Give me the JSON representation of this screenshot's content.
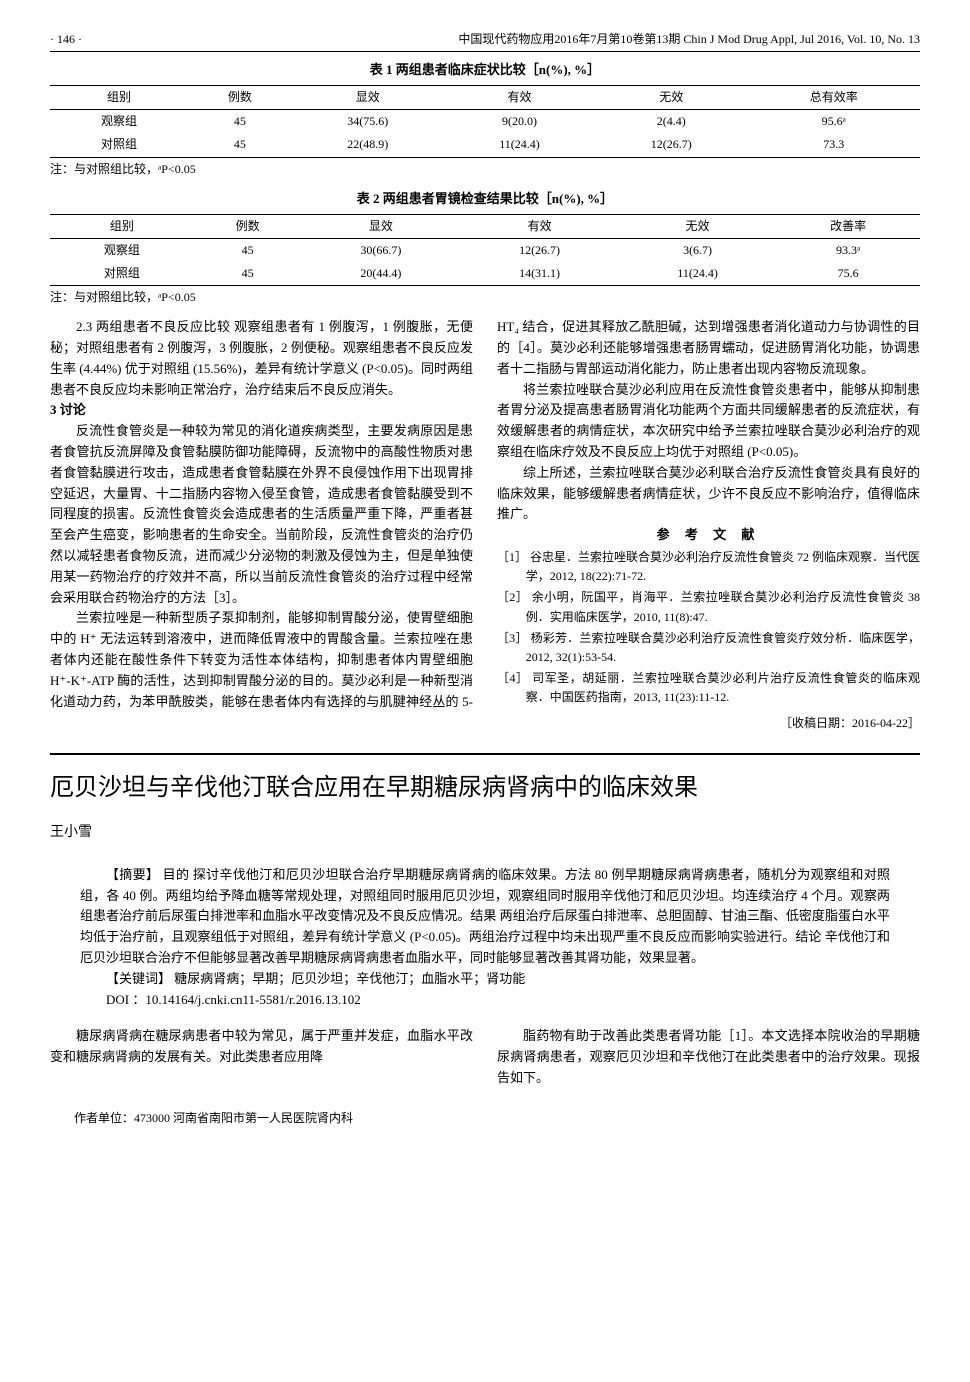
{
  "header": {
    "page_num": "· 146 ·",
    "journal": "中国现代药物应用2016年7月第10卷第13期   Chin J Mod Drug Appl, Jul 2016, Vol. 10, No. 13"
  },
  "table1": {
    "title": "表 1   两组患者临床症状比较［n(%), %］",
    "columns": [
      "组别",
      "例数",
      "显效",
      "有效",
      "无效",
      "总有效率"
    ],
    "rows": [
      [
        "观察组",
        "45",
        "34(75.6)",
        "9(20.0)",
        "2(4.4)",
        "95.6ᵃ"
      ],
      [
        "对照组",
        "45",
        "22(48.9)",
        "11(24.4)",
        "12(26.7)",
        "73.3"
      ]
    ],
    "note": "注：与对照组比较，ᵃP<0.05"
  },
  "table2": {
    "title": "表 2   两组患者胃镜检查结果比较［n(%), %］",
    "columns": [
      "组别",
      "例数",
      "显效",
      "有效",
      "无效",
      "改善率"
    ],
    "rows": [
      [
        "观察组",
        "45",
        "30(66.7)",
        "12(26.7)",
        "3(6.7)",
        "93.3ᵃ"
      ],
      [
        "对照组",
        "45",
        "20(44.4)",
        "14(31.1)",
        "11(24.4)",
        "75.6"
      ]
    ],
    "note": "注：与对照组比较，ᵃP<0.05"
  },
  "body": {
    "p1": "2.3   两组患者不良反应比较   观察组患者有 1 例腹泻，1 例腹胀，无便秘；对照组患者有 2 例腹泻，3 例腹胀，2 例便秘。观察组患者不良反应发生率 (4.44%) 优于对照组 (15.56%)，差异有统计学意义 (P<0.05)。同时两组患者不良反应均未影响正常治疗，治疗结束后不良反应消失。",
    "h_discuss": "3   讨论",
    "p2": "反流性食管炎是一种较为常见的消化道疾病类型，主要发病原因是患者食管抗反流屏障及食管黏膜防御功能障碍，反流物中的高酸性物质对患者食管黏膜进行攻击，造成患者食管黏膜在外界不良侵蚀作用下出现胃排空延迟，大量胃、十二指肠内容物入侵至食管，造成患者食管黏膜受到不同程度的损害。反流性食管炎会造成患者的生活质量严重下降，严重者甚至会产生癌变，影响患者的生命安全。当前阶段，反流性食管炎的治疗仍然以减轻患者食物反流，进而减少分泌物的刺激及侵蚀为主，但是单独使用某一药物治疗的疗效并不高，所以当前反流性食管炎的治疗过程中经常会采用联合药物治疗的方法［3］。",
    "p3": "兰索拉唑是一种新型质子泵抑制剂，能够抑制胃酸分泌，使胃壁细胞中的 H⁺ 无法运转到溶液中，进而降低胃液中的胃酸含量。兰索拉唑在患者体内还能在酸性条件下转变为活性本体结构，抑制患者体内胃壁细胞 H⁺-K⁺-ATP 酶的活性，达到抑制胃酸分泌的目的。莫沙必利是一种新型消化道动力药，为苯甲酰胺类，能够在患者体内有选择的与肌腱神经丛的 5-HT₄ 结合，促进其释放乙酰胆碱，达到增强患者消化道动力与协调性的目的［4］。莫沙必利还能够增强患者肠胃蠕动，促进肠胃消化功能，协调患者十二指肠与胃部运动消化能力，防止患者出现内容物反流现象。",
    "p4": "将兰索拉唑联合莫沙必利应用在反流性食管炎患者中，能够从抑制患者胃分泌及提高患者肠胃消化功能两个方面共同缓解患者的反流症状，有效缓解患者的病情症状，本次研究中给予兰索拉唑联合莫沙必利治疗的观察组在临床疗效及不良反应上均优于对照组 (P<0.05)。",
    "p5": "综上所述，兰索拉唑联合莫沙必利联合治疗反流性食管炎具有良好的临床效果，能够缓解患者病情症状，少许不良反应不影响治疗，值得临床推广。",
    "ref_title": "参 考 文 献",
    "refs": [
      "［1］ 谷忠星．兰索拉唑联合莫沙必利治疗反流性食管炎 72 例临床观察．当代医学，2012, 18(22):71-72.",
      "［2］ 余小明，阮国平，肖海平．兰索拉唑联合莫沙必利治疗反流性食管炎 38 例．实用临床医学，2010, 11(8):47.",
      "［3］ 杨彩芳．兰索拉唑联合莫沙必利治疗反流性食管炎疗效分析．临床医学，2012, 32(1):53-54.",
      "［4］ 司军圣，胡延丽．兰索拉唑联合莫沙必利片治疗反流性食管炎的临床观察．中国医药指南，2013, 11(23):11-12."
    ],
    "received": "［收稿日期：2016-04-22］"
  },
  "article2": {
    "title": "厄贝沙坦与辛伐他汀联合应用在早期糖尿病肾病中的临床效果",
    "author": "王小雪",
    "abstract_p1": "【摘要】 目的   探讨辛伐他汀和厄贝沙坦联合治疗早期糖尿病肾病的临床效果。方法   80 例早期糖尿病肾病患者，随机分为观察组和对照组，各 40 例。两组均给予降血糖等常规处理，对照组同时服用厄贝沙坦，观察组同时服用辛伐他汀和厄贝沙坦。均连续治疗 4 个月。观察两组患者治疗前后尿蛋白排泄率和血脂水平改变情况及不良反应情况。结果   两组治疗后尿蛋白排泄率、总胆固醇、甘油三酯、低密度脂蛋白水平均低于治疗前，且观察组低于对照组，差异有统计学意义 (P<0.05)。两组治疗过程中均未出现严重不良反应而影响实验进行。结论   辛伐他汀和厄贝沙坦联合治疗不但能够显著改善早期糖尿病肾病患者血脂水平，同时能够显著改善其肾功能，效果显著。",
    "keywords": "【关键词】 糖尿病肾病；早期；厄贝沙坦；辛伐他汀；血脂水平；肾功能",
    "doi": "DOI ：10.14164/j.cnki.cn11-5581/r.2016.13.102",
    "intro_left": "糖尿病肾病在糖尿病患者中较为常见，属于严重并发症，血脂水平改变和糖尿病肾病的发展有关。对此类患者应用降",
    "intro_right": "脂药物有助于改善此类患者肾功能［1］。本文选择本院收治的早期糖尿病肾病患者，观察厄贝沙坦和辛伐他汀在此类患者中的治疗效果。现报告如下。",
    "affiliation": "作者单位：473000   河南省南阳市第一人民医院肾内科"
  }
}
